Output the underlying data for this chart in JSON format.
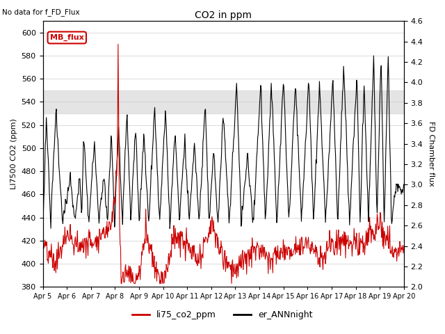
{
  "title": "CO2 in ppm",
  "top_left_note": "No data for f_FD_Flux",
  "ylabel_left": "LI7500 CO2 (ppm)",
  "ylabel_right": "FD Chamber flux",
  "ylim_left": [
    380,
    610
  ],
  "ylim_right": [
    2.0,
    4.6
  ],
  "yticks_left": [
    380,
    400,
    420,
    440,
    460,
    480,
    500,
    520,
    540,
    560,
    580,
    600
  ],
  "yticks_right": [
    2.0,
    2.2,
    2.4,
    2.6,
    2.8,
    3.0,
    3.2,
    3.4,
    3.6,
    3.8,
    4.0,
    4.2,
    4.4,
    4.6
  ],
  "xticklabels": [
    "Apr 5",
    "Apr 6",
    "Apr 7",
    "Apr 8",
    "Apr 9",
    "Apr 10",
    "Apr 11",
    "Apr 12",
    "Apr 13",
    "Apr 14",
    "Apr 15",
    "Apr 16",
    "Apr 17",
    "Apr 18",
    "Apr 19",
    "Apr 20"
  ],
  "shaded_band": [
    530,
    550
  ],
  "legend_labels": [
    "li75_co2_ppm",
    "er_ANNnight"
  ],
  "legend_colors": [
    "#cc0000",
    "#000000"
  ],
  "line_color_red": "#cc0000",
  "line_color_black": "#000000",
  "mb_flux_box_color": "#cc0000",
  "mb_flux_text": "MB_flux",
  "background_color": "#ffffff",
  "grid_color": "#cccccc"
}
